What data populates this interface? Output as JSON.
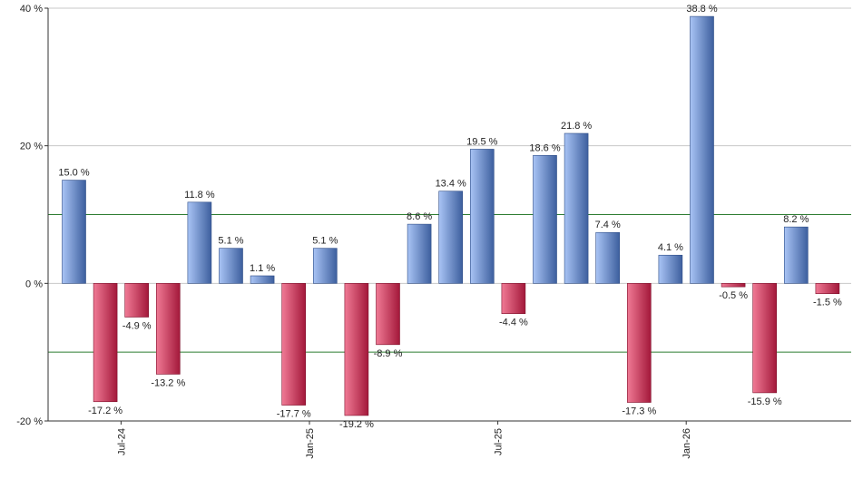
{
  "chart_data": {
    "type": "bar",
    "title": "",
    "xlabel": "",
    "ylabel": "",
    "ylim": [
      -20,
      40
    ],
    "y_ticks": [
      "40 %",
      "20 %",
      "0 %",
      "-20 %"
    ],
    "y_tick_values": [
      40,
      20,
      0,
      -20
    ],
    "x_tick_labels": [
      {
        "label": "Jul-24",
        "after_index": 1
      },
      {
        "label": "Jan-25",
        "after_index": 7
      },
      {
        "label": "Jul-25",
        "after_index": 13
      },
      {
        "label": "Jan-26",
        "after_index": 19
      }
    ],
    "reference_lines": [
      10,
      -10
    ],
    "grid": true,
    "values": [
      15.0,
      -17.2,
      -4.9,
      -13.2,
      11.8,
      5.1,
      1.1,
      -17.7,
      5.1,
      -19.2,
      -8.9,
      8.6,
      13.4,
      19.5,
      -4.4,
      18.6,
      21.8,
      7.4,
      -17.3,
      4.1,
      38.8,
      -0.5,
      -15.9,
      8.2,
      -1.5
    ],
    "labels": [
      "15.0 %",
      "-17.2 %",
      "-4.9 %",
      "-13.2 %",
      "11.8 %",
      "5.1 %",
      "1.1 %",
      "-17.7 %",
      "5.1 %",
      "-19.2 %",
      "-8.9 %",
      "8.6 %",
      "13.4 %",
      "19.5 %",
      "-4.4 %",
      "18.6 %",
      "21.8 %",
      "7.4 %",
      "-17.3 %",
      "4.1 %",
      "38.8 %",
      "-0.5 %",
      "-15.9 %",
      "8.2 %",
      "-1.5 %"
    ],
    "colors": {
      "positive_light": "#a9c4f5",
      "positive_dark": "#3d5f9e",
      "negative_light": "#f07a95",
      "negative_dark": "#a3183a",
      "grid": "#c8c8c8",
      "reference_line": "#2e7d32",
      "axis": "#333333"
    }
  }
}
